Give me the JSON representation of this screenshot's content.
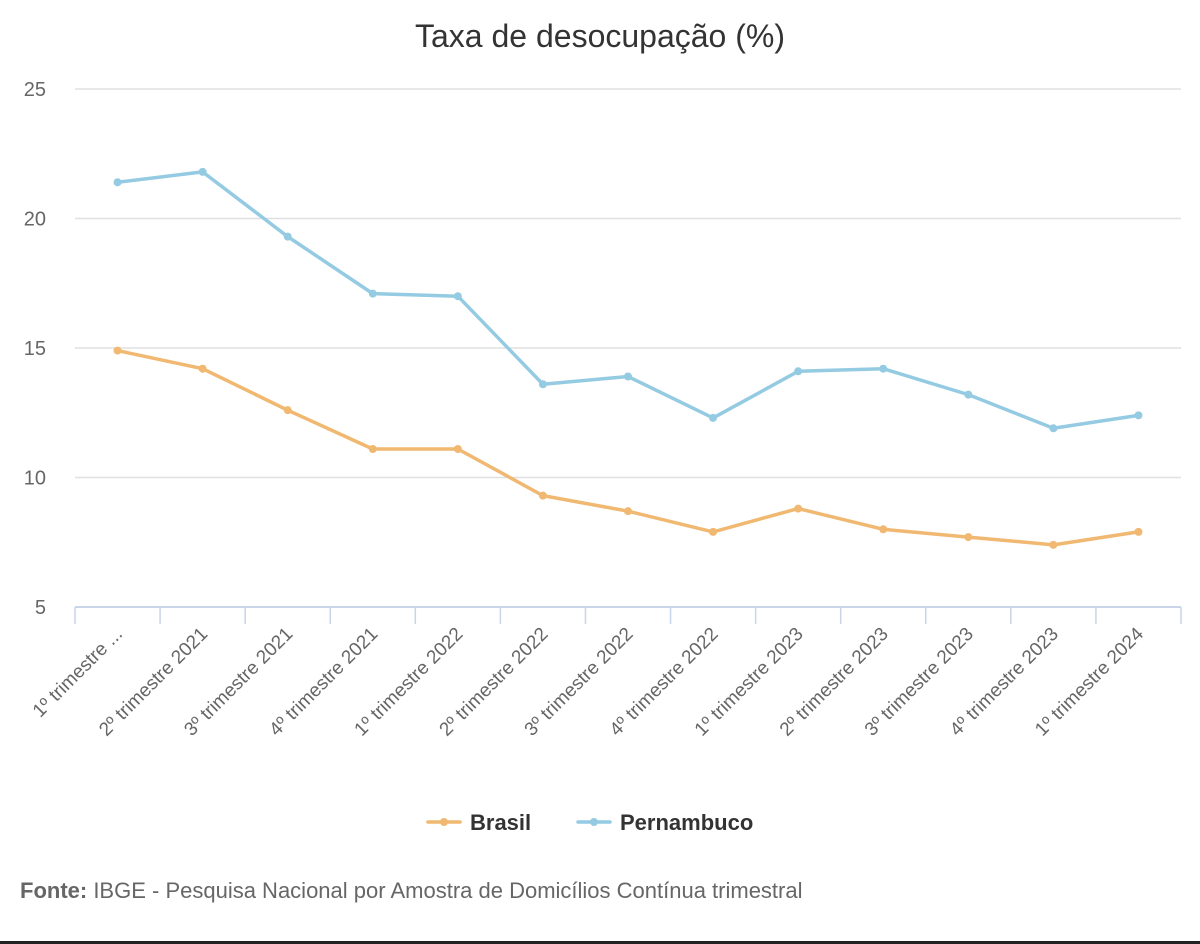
{
  "chart_data": {
    "type": "line",
    "title": "Taxa de desocupação (%)",
    "xlabel": "",
    "ylabel": "",
    "categories": [
      "1º trimestre ...",
      "2º trimestre 2021",
      "3º trimestre 2021",
      "4º trimestre 2021",
      "1º trimestre 2022",
      "2º trimestre 2022",
      "3º trimestre 2022",
      "4º trimestre 2022",
      "1º trimestre 2023",
      "2º trimestre 2023",
      "3º trimestre 2023",
      "4º trimestre 2023",
      "1º trimestre 2024"
    ],
    "series": [
      {
        "name": "Brasil",
        "color": "#f0b871",
        "values": [
          14.9,
          14.2,
          12.6,
          11.1,
          11.1,
          9.3,
          8.7,
          7.9,
          8.8,
          8.0,
          7.7,
          7.4,
          7.9
        ]
      },
      {
        "name": "Pernambuco",
        "color": "#94cbe2",
        "values": [
          21.4,
          21.8,
          19.3,
          17.1,
          17.0,
          13.6,
          13.9,
          12.3,
          14.1,
          14.2,
          13.2,
          11.9,
          12.4
        ]
      }
    ],
    "ylim": [
      5,
      25
    ],
    "yticks": [
      5,
      10,
      15,
      20,
      25
    ],
    "grid": true,
    "legend": "bottom-center"
  },
  "source": {
    "label": "Fonte:",
    "text": " IBGE - Pesquisa Nacional por Amostra de Domicílios Contínua trimestral"
  }
}
